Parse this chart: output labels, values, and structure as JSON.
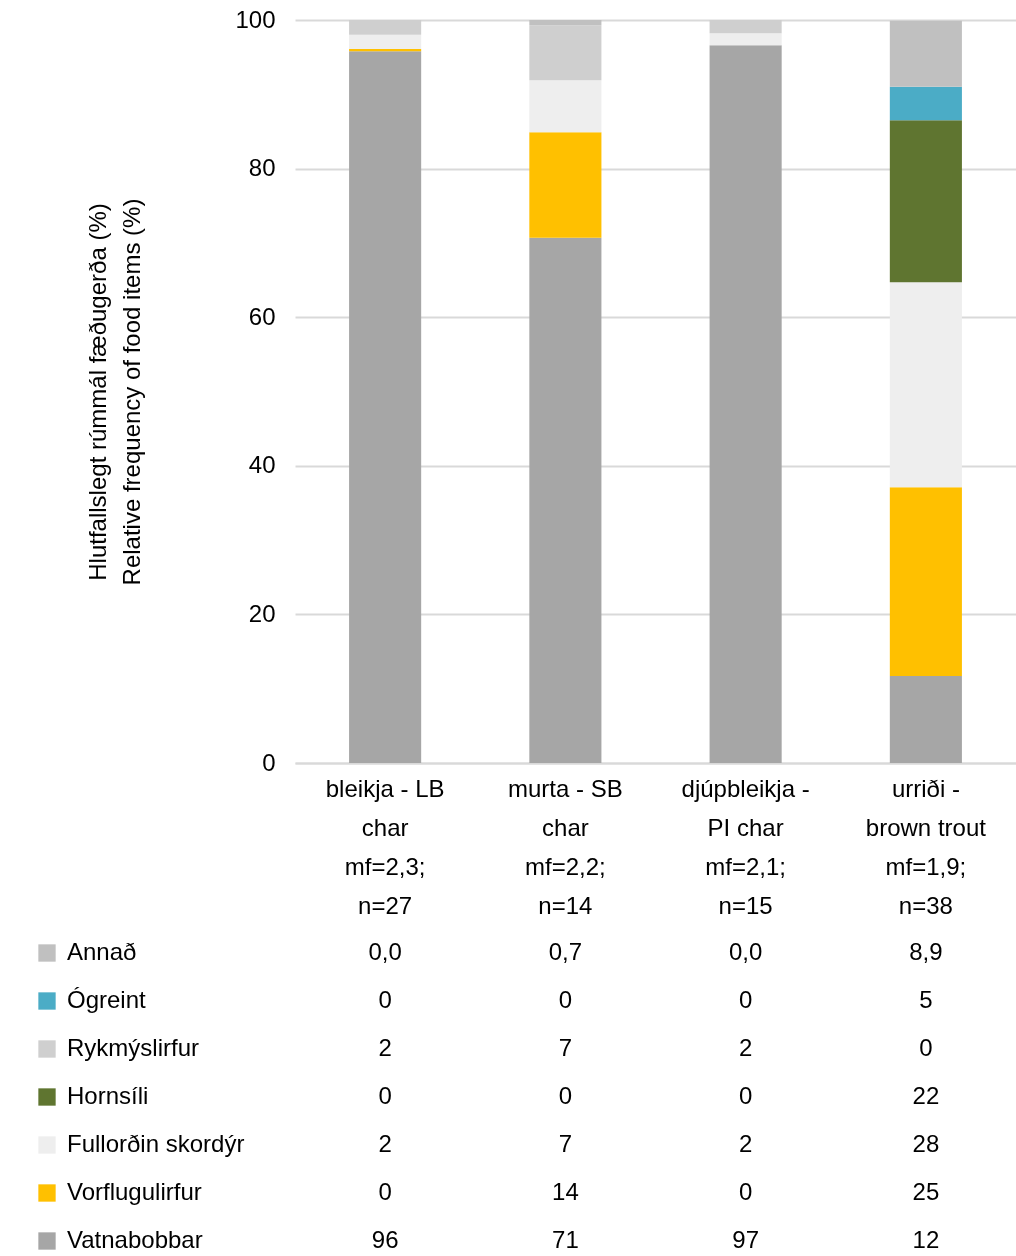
{
  "chart_data": {
    "type": "bar",
    "stacked": true,
    "ylabel": "Hlutfallslegt rúmmál fæðugerða (%)\nRelative frequency of food items (%)",
    "categories": [
      "bleikja - LB\nchar\nmf=2,3;\nn=27",
      "murta - SB\nchar\nmf=2,2;\nn=14",
      "djúpbleikja -\nPI char\nmf=2,1;\nn=15",
      "urriði -\nbrown trout\nmf=1,9;\nn=38"
    ],
    "ylim": [
      0,
      100
    ],
    "yticks": [
      0,
      20,
      40,
      60,
      80,
      100
    ],
    "grid": "y",
    "legend": "bottom",
    "series": [
      {
        "name": "Vatnabobbar",
        "color": "#a6a6a6",
        "values": [
          95.8,
          70.7,
          96.6,
          11.7
        ],
        "value_labels": [
          "96",
          "71",
          "97",
          "12"
        ]
      },
      {
        "name": "Vorflugulirfur",
        "color": "#ffc000",
        "values": [
          0.3,
          14.2,
          0,
          25.4
        ],
        "value_labels": [
          "0",
          "14",
          "0",
          "25"
        ]
      },
      {
        "name": "Fullorðin skordýr",
        "color": "#eeeeee",
        "values": [
          1.9,
          7.0,
          1.6,
          27.6
        ],
        "value_labels": [
          "2",
          "7",
          "2",
          "28"
        ]
      },
      {
        "name": "Hornsíli",
        "color": "#5f7530",
        "values": [
          0,
          0,
          0,
          21.8
        ],
        "value_labels": [
          "0",
          "0",
          "0",
          "22"
        ]
      },
      {
        "name": "Rykmýslirfur",
        "color": "#cfcfcf",
        "values": [
          2.0,
          7.4,
          1.8,
          0
        ],
        "value_labels": [
          "2",
          "7",
          "2",
          "0"
        ]
      },
      {
        "name": "Ógreint",
        "color": "#4bacc6",
        "values": [
          0,
          0,
          0,
          4.5
        ],
        "value_labels": [
          "0",
          "0",
          "0",
          "5"
        ]
      },
      {
        "name": "Annað",
        "color": "#c0c0c0",
        "values": [
          0.0,
          0.7,
          0.0,
          8.9
        ],
        "value_labels": [
          "0,0",
          "0,7",
          "0,0",
          "8,9"
        ]
      }
    ]
  }
}
